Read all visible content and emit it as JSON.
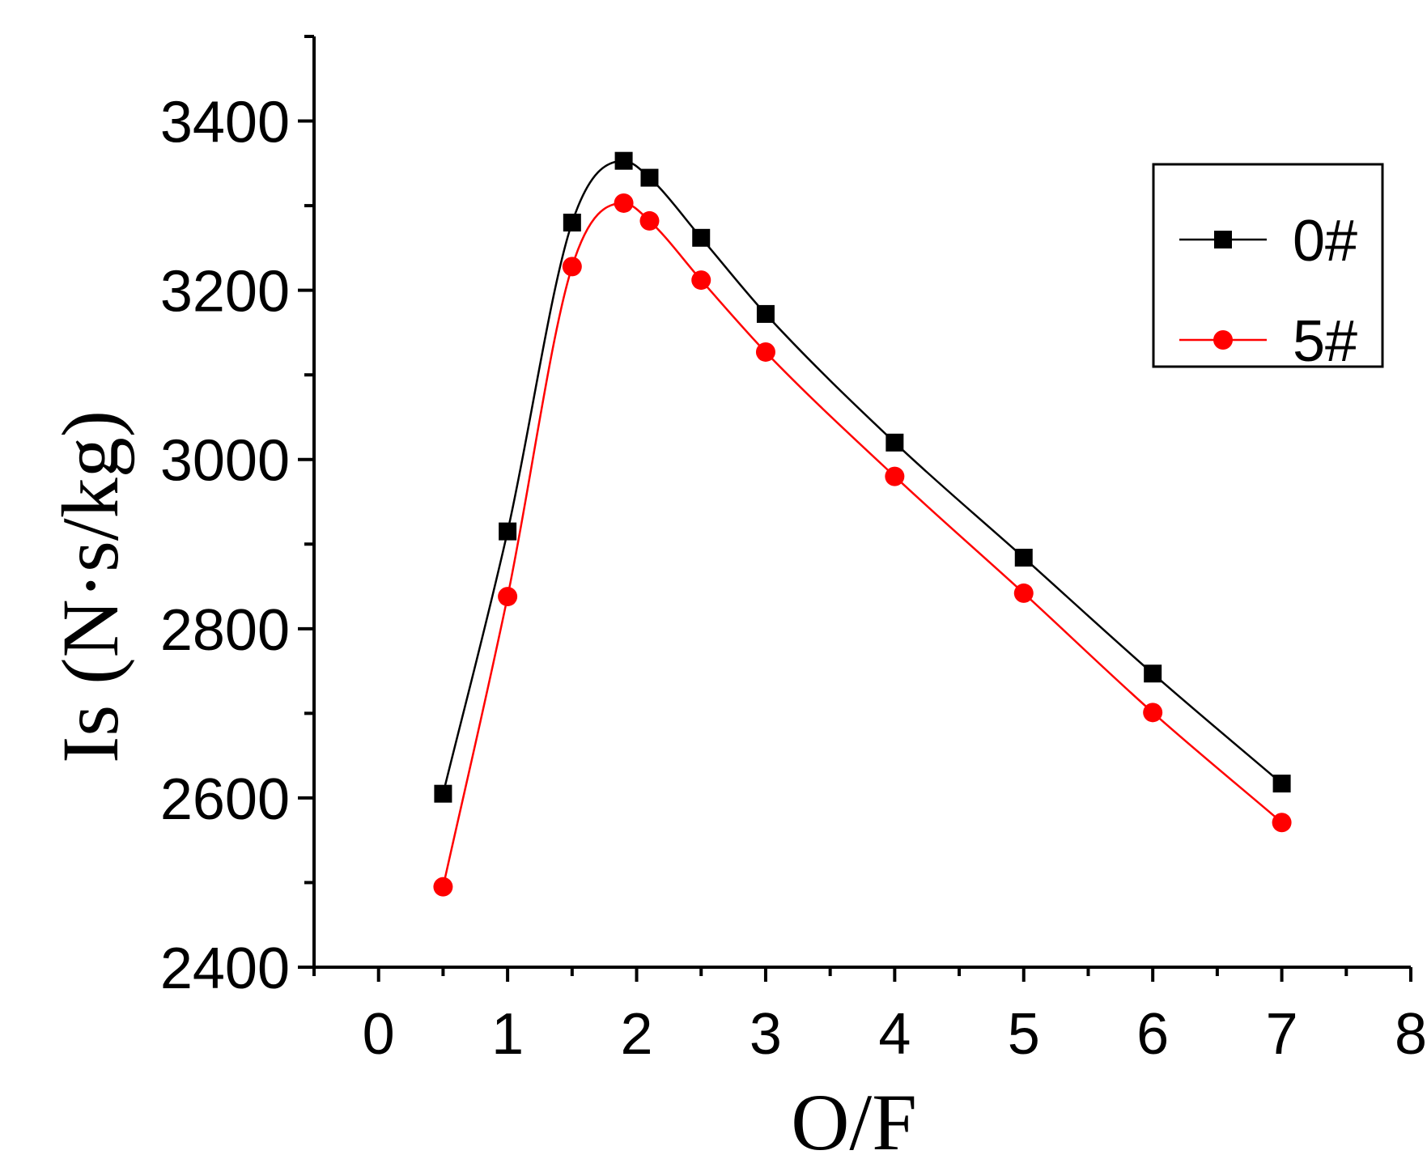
{
  "chart_data": {
    "type": "line",
    "title": "",
    "xlabel": "O/F",
    "ylabel": "Is (N·s/kg)",
    "xlim": [
      -0.5,
      8
    ],
    "ylim": [
      2400,
      3500
    ],
    "xticks": [
      0,
      1,
      2,
      3,
      4,
      5,
      6,
      7,
      8
    ],
    "yticks": [
      2400,
      2600,
      2800,
      3000,
      3200,
      3400
    ],
    "grid": false,
    "legend_position": "top-right",
    "series": [
      {
        "name": "0#",
        "color": "#000000",
        "marker": "square",
        "x": [
          0.5,
          1.0,
          1.5,
          1.9,
          2.1,
          2.5,
          3.0,
          4.0,
          5.0,
          6.0,
          7.0
        ],
        "y": [
          2605,
          2915,
          3280,
          3353,
          3333,
          3262,
          3172,
          3020,
          2884,
          2747,
          2617
        ]
      },
      {
        "name": "5#",
        "color": "#ff0000",
        "marker": "circle",
        "x": [
          0.5,
          1.0,
          1.5,
          1.9,
          2.1,
          2.5,
          3.0,
          4.0,
          5.0,
          6.0,
          7.0
        ],
        "y": [
          2495,
          2838,
          3228,
          3303,
          3282,
          3212,
          3127,
          2980,
          2842,
          2701,
          2571
        ]
      }
    ]
  }
}
